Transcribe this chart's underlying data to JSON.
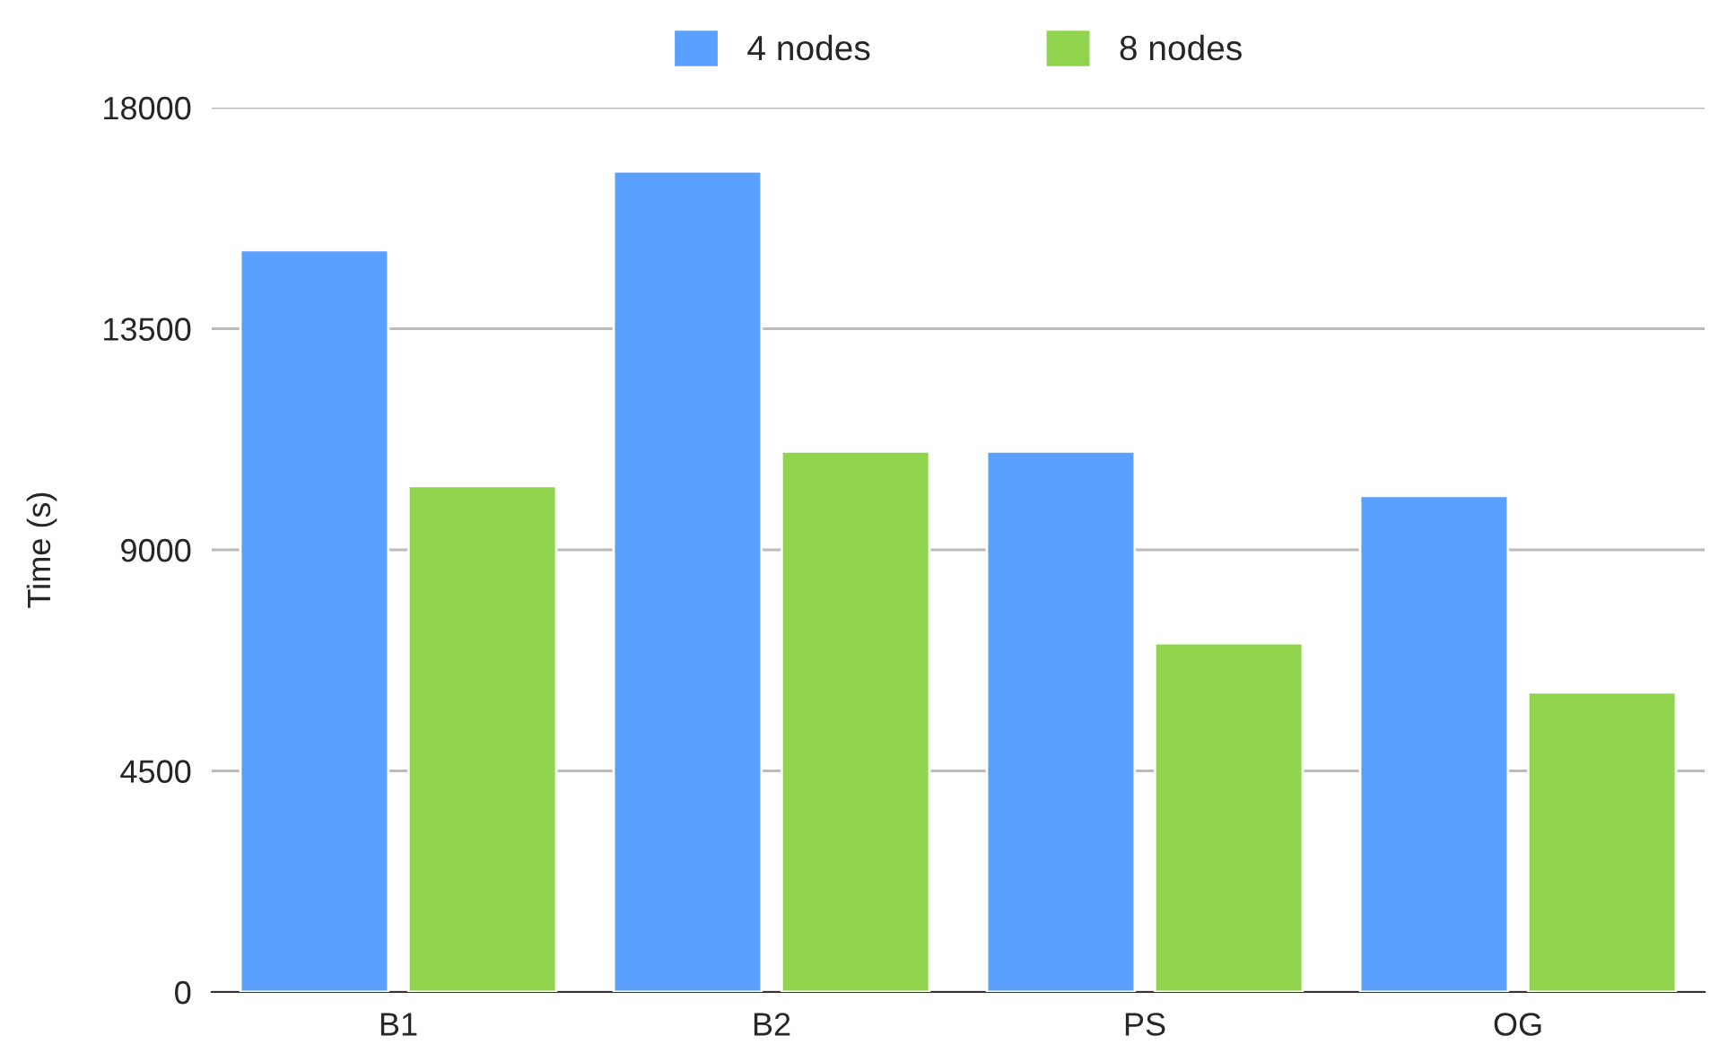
{
  "chart_data": {
    "type": "bar",
    "ylabel": "Time (s)",
    "categories": [
      "B1",
      "B2",
      "PS",
      "OG"
    ],
    "series": [
      {
        "name": "4 nodes",
        "color": "#5ba0fd",
        "values": [
          15100,
          16700,
          11000,
          10100
        ]
      },
      {
        "name": "8 nodes",
        "color": "#8fd44c",
        "values": [
          10300,
          11000,
          7100,
          6100
        ]
      }
    ],
    "ylim": [
      0,
      18000
    ],
    "yticks": [
      0,
      4500,
      9000,
      13500,
      18000
    ],
    "grid": "y",
    "legend": "top"
  }
}
